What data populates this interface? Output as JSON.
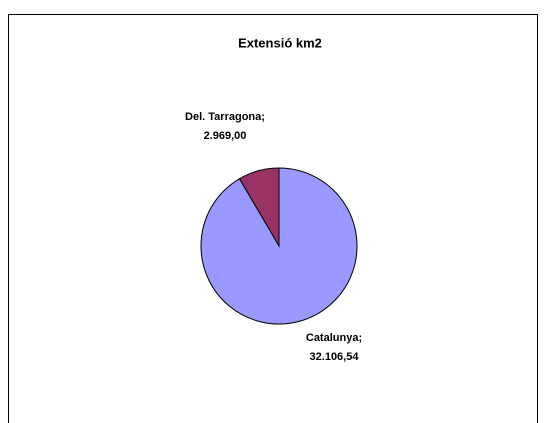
{
  "chart_data": {
    "type": "pie",
    "title": "Extensió km2",
    "categories": [
      "Del. Tarragona",
      "Catalunya"
    ],
    "values": [
      2969.0,
      32106.54
    ],
    "value_labels": [
      "2.969,00",
      "32.106,54"
    ],
    "separator": ";",
    "colors": [
      "#993366",
      "#9999ff"
    ]
  }
}
